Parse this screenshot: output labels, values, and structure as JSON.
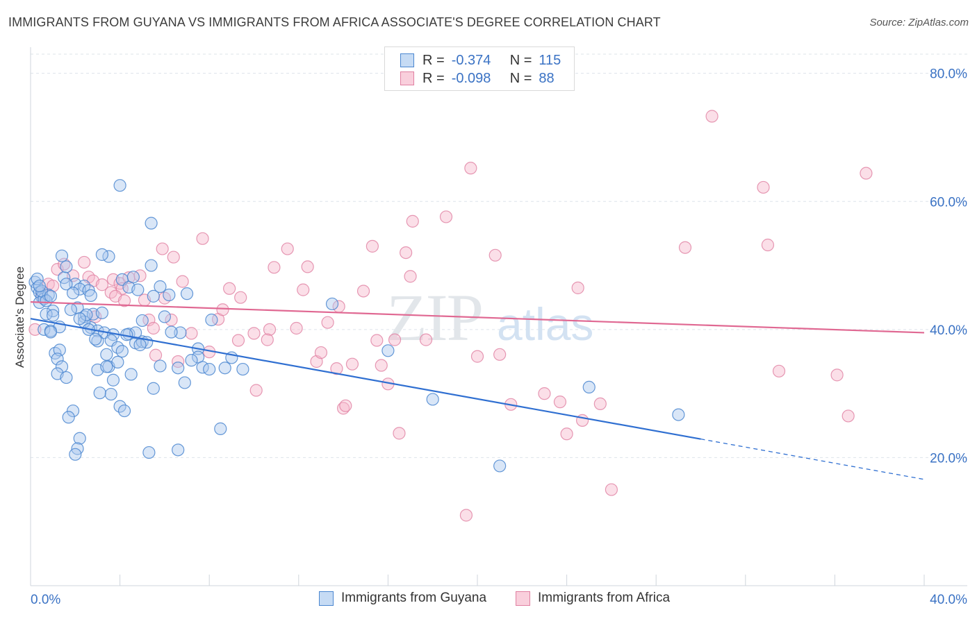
{
  "title": "IMMIGRANTS FROM GUYANA VS IMMIGRANTS FROM AFRICA ASSOCIATE'S DEGREE CORRELATION CHART",
  "source": "Source: ZipAtlas.com",
  "watermark": {
    "zip": "ZIP",
    "atlas": "atlas"
  },
  "legend": {
    "r_label": "R =",
    "n_label": "N =",
    "rows": [
      {
        "r": "-0.374",
        "n": "115"
      },
      {
        "r": "-0.098",
        "n": "88"
      }
    ]
  },
  "colors": {
    "guyana_fill": "#aac8ee",
    "guyana_stroke": "#4a86d0",
    "guyana_line": "#2f6fd1",
    "africa_fill": "#f6b8cb",
    "africa_stroke": "#e07fa1",
    "africa_line": "#e06892",
    "axis_text": "#3a72c4",
    "grid": "#dde3ea"
  },
  "chart_data": {
    "type": "scatter",
    "title": "IMMIGRANTS FROM GUYANA VS IMMIGRANTS FROM AFRICA ASSOCIATE'S DEGREE CORRELATION CHART",
    "xlabel": "",
    "ylabel": "Associate's Degree",
    "xlim": [
      0,
      40
    ],
    "ylim": [
      0,
      83
    ],
    "x_tick_labels": [
      "0.0%",
      "40.0%"
    ],
    "y_ticks": [
      20,
      40,
      60,
      80
    ],
    "y_tick_labels": [
      "20.0%",
      "40.0%",
      "60.0%",
      "80.0%"
    ],
    "series": [
      {
        "name": "Immigrants from Guyana",
        "r": -0.374,
        "n": 115,
        "trend": {
          "x0": 0,
          "y0": 41.7,
          "x1": 30,
          "y1": 22.9,
          "dash_to": 40,
          "dash_y": 16.6
        },
        "points": [
          [
            0.2,
            47.4
          ],
          [
            0.3,
            46.5
          ],
          [
            0.4,
            45.8
          ],
          [
            0.5,
            45.1
          ],
          [
            0.4,
            44.2
          ],
          [
            0.6,
            44.8
          ],
          [
            0.8,
            45.4
          ],
          [
            0.3,
            47.9
          ],
          [
            1.0,
            42.9
          ],
          [
            0.7,
            42.4
          ],
          [
            0.6,
            40.0
          ],
          [
            0.9,
            39.8
          ],
          [
            1.1,
            36.3
          ],
          [
            1.3,
            36.8
          ],
          [
            1.2,
            35.4
          ],
          [
            1.4,
            34.2
          ],
          [
            1.2,
            33.1
          ],
          [
            1.6,
            32.5
          ],
          [
            1.9,
            27.3
          ],
          [
            1.7,
            26.3
          ],
          [
            2.2,
            23.0
          ],
          [
            2.1,
            21.4
          ],
          [
            2.0,
            20.5
          ],
          [
            1.5,
            48.1
          ],
          [
            1.6,
            49.8
          ],
          [
            1.4,
            51.5
          ],
          [
            2.0,
            47.1
          ],
          [
            2.4,
            46.8
          ],
          [
            2.2,
            46.3
          ],
          [
            2.6,
            46.1
          ],
          [
            2.7,
            45.3
          ],
          [
            2.4,
            42.0
          ],
          [
            2.8,
            42.4
          ],
          [
            3.2,
            42.6
          ],
          [
            2.7,
            40.3
          ],
          [
            2.4,
            41.2
          ],
          [
            2.1,
            43.4
          ],
          [
            3.0,
            39.8
          ],
          [
            3.3,
            39.5
          ],
          [
            3.7,
            39.2
          ],
          [
            3.6,
            38.3
          ],
          [
            3.9,
            37.2
          ],
          [
            3.4,
            36.1
          ],
          [
            3.5,
            34.2
          ],
          [
            3.9,
            34.9
          ],
          [
            3.0,
            33.7
          ],
          [
            3.6,
            29.9
          ],
          [
            4.0,
            28.0
          ],
          [
            4.2,
            27.3
          ],
          [
            3.7,
            32.1
          ],
          [
            4.5,
            33.0
          ],
          [
            4.1,
            36.6
          ],
          [
            4.4,
            39.3
          ],
          [
            4.7,
            37.9
          ],
          [
            5.0,
            38.1
          ],
          [
            5.2,
            38.0
          ],
          [
            4.7,
            39.5
          ],
          [
            4.1,
            47.8
          ],
          [
            4.4,
            46.6
          ],
          [
            4.8,
            46.2
          ],
          [
            5.5,
            45.2
          ],
          [
            3.5,
            51.4
          ],
          [
            3.2,
            51.7
          ],
          [
            4.0,
            62.5
          ],
          [
            5.4,
            56.6
          ],
          [
            5.4,
            50.0
          ],
          [
            5.8,
            34.3
          ],
          [
            5.5,
            30.8
          ],
          [
            6.0,
            42.0
          ],
          [
            6.2,
            45.4
          ],
          [
            6.7,
            39.5
          ],
          [
            6.6,
            34.0
          ],
          [
            6.9,
            31.7
          ],
          [
            7.0,
            45.6
          ],
          [
            7.5,
            37.0
          ],
          [
            7.5,
            35.7
          ],
          [
            7.7,
            34.1
          ],
          [
            8.1,
            41.5
          ],
          [
            8.0,
            33.8
          ],
          [
            8.5,
            24.5
          ],
          [
            8.7,
            34.0
          ],
          [
            9.0,
            35.6
          ],
          [
            9.5,
            33.8
          ],
          [
            3.1,
            30.1
          ],
          [
            5.3,
            20.8
          ],
          [
            6.6,
            21.2
          ],
          [
            13.5,
            44.0
          ],
          [
            16.0,
            36.7
          ],
          [
            18.0,
            29.1
          ],
          [
            21.0,
            18.7
          ],
          [
            25.0,
            31.0
          ],
          [
            29.0,
            26.7
          ],
          [
            0.5,
            46.0
          ],
          [
            0.7,
            44.5
          ],
          [
            1.0,
            42.2
          ],
          [
            1.8,
            43.1
          ],
          [
            2.5,
            42.3
          ],
          [
            3.0,
            38.2
          ],
          [
            1.3,
            40.4
          ],
          [
            0.9,
            39.6
          ],
          [
            2.2,
            41.7
          ],
          [
            2.9,
            38.5
          ],
          [
            4.3,
            39.2
          ],
          [
            5.0,
            41.4
          ],
          [
            1.6,
            47.1
          ],
          [
            0.4,
            46.8
          ],
          [
            0.9,
            45.2
          ],
          [
            2.6,
            40.0
          ],
          [
            1.9,
            45.7
          ],
          [
            3.4,
            34.2
          ],
          [
            4.9,
            37.6
          ],
          [
            6.3,
            39.6
          ],
          [
            7.2,
            35.2
          ],
          [
            5.8,
            46.7
          ],
          [
            4.6,
            48.2
          ]
        ]
      },
      {
        "name": "Immigrants from Africa",
        "r": -0.098,
        "n": 88,
        "trend": {
          "x0": 0,
          "y0": 44.3,
          "x1": 40,
          "y1": 39.5
        },
        "points": [
          [
            0.2,
            40.0
          ],
          [
            0.5,
            45.5
          ],
          [
            0.8,
            47.1
          ],
          [
            1.2,
            49.4
          ],
          [
            1.5,
            50.2
          ],
          [
            1.9,
            48.4
          ],
          [
            2.4,
            50.5
          ],
          [
            2.6,
            48.2
          ],
          [
            2.8,
            47.6
          ],
          [
            3.2,
            47.0
          ],
          [
            3.7,
            47.8
          ],
          [
            4.0,
            47.2
          ],
          [
            4.1,
            46.4
          ],
          [
            4.4,
            48.1
          ],
          [
            3.6,
            45.8
          ],
          [
            3.8,
            45.2
          ],
          [
            4.2,
            44.5
          ],
          [
            4.9,
            48.4
          ],
          [
            5.1,
            44.6
          ],
          [
            5.3,
            41.5
          ],
          [
            5.5,
            40.2
          ],
          [
            5.6,
            36.0
          ],
          [
            5.9,
            52.6
          ],
          [
            6.4,
            51.3
          ],
          [
            6.0,
            44.9
          ],
          [
            6.3,
            41.5
          ],
          [
            6.8,
            47.5
          ],
          [
            6.6,
            35.0
          ],
          [
            7.2,
            39.4
          ],
          [
            7.7,
            54.2
          ],
          [
            8.0,
            36.5
          ],
          [
            8.4,
            41.6
          ],
          [
            8.6,
            43.1
          ],
          [
            8.9,
            46.4
          ],
          [
            9.4,
            45.0
          ],
          [
            9.3,
            38.3
          ],
          [
            10.0,
            39.4
          ],
          [
            10.1,
            30.5
          ],
          [
            10.7,
            40.0
          ],
          [
            10.6,
            38.4
          ],
          [
            10.9,
            49.7
          ],
          [
            11.5,
            52.6
          ],
          [
            11.9,
            40.2
          ],
          [
            12.2,
            46.2
          ],
          [
            12.4,
            49.8
          ],
          [
            12.8,
            35.0
          ],
          [
            13.0,
            36.4
          ],
          [
            13.3,
            41.1
          ],
          [
            13.7,
            33.9
          ],
          [
            13.8,
            43.6
          ],
          [
            14.0,
            27.7
          ],
          [
            14.1,
            28.1
          ],
          [
            14.4,
            34.6
          ],
          [
            14.9,
            46.0
          ],
          [
            15.3,
            53.0
          ],
          [
            15.5,
            38.3
          ],
          [
            15.7,
            34.4
          ],
          [
            16.0,
            31.5
          ],
          [
            16.3,
            38.4
          ],
          [
            16.5,
            23.8
          ],
          [
            16.8,
            52.0
          ],
          [
            17.1,
            56.9
          ],
          [
            17.0,
            48.3
          ],
          [
            17.7,
            38.4
          ],
          [
            18.6,
            57.6
          ],
          [
            19.5,
            11.0
          ],
          [
            19.7,
            65.2
          ],
          [
            20.0,
            35.8
          ],
          [
            20.8,
            51.6
          ],
          [
            21.0,
            36.1
          ],
          [
            21.5,
            28.3
          ],
          [
            23.0,
            30.0
          ],
          [
            23.7,
            28.7
          ],
          [
            24.0,
            23.7
          ],
          [
            24.5,
            46.5
          ],
          [
            24.7,
            25.8
          ],
          [
            25.5,
            28.4
          ],
          [
            26.0,
            15.0
          ],
          [
            29.3,
            52.8
          ],
          [
            30.5,
            73.3
          ],
          [
            32.8,
            62.2
          ],
          [
            33.0,
            53.2
          ],
          [
            33.5,
            33.5
          ],
          [
            36.1,
            32.9
          ],
          [
            36.6,
            26.5
          ],
          [
            37.4,
            64.4
          ],
          [
            1.0,
            46.8
          ],
          [
            2.9,
            42.0
          ]
        ]
      }
    ]
  },
  "bottom_legend": [
    "Immigrants from Guyana",
    "Immigrants from Africa"
  ]
}
